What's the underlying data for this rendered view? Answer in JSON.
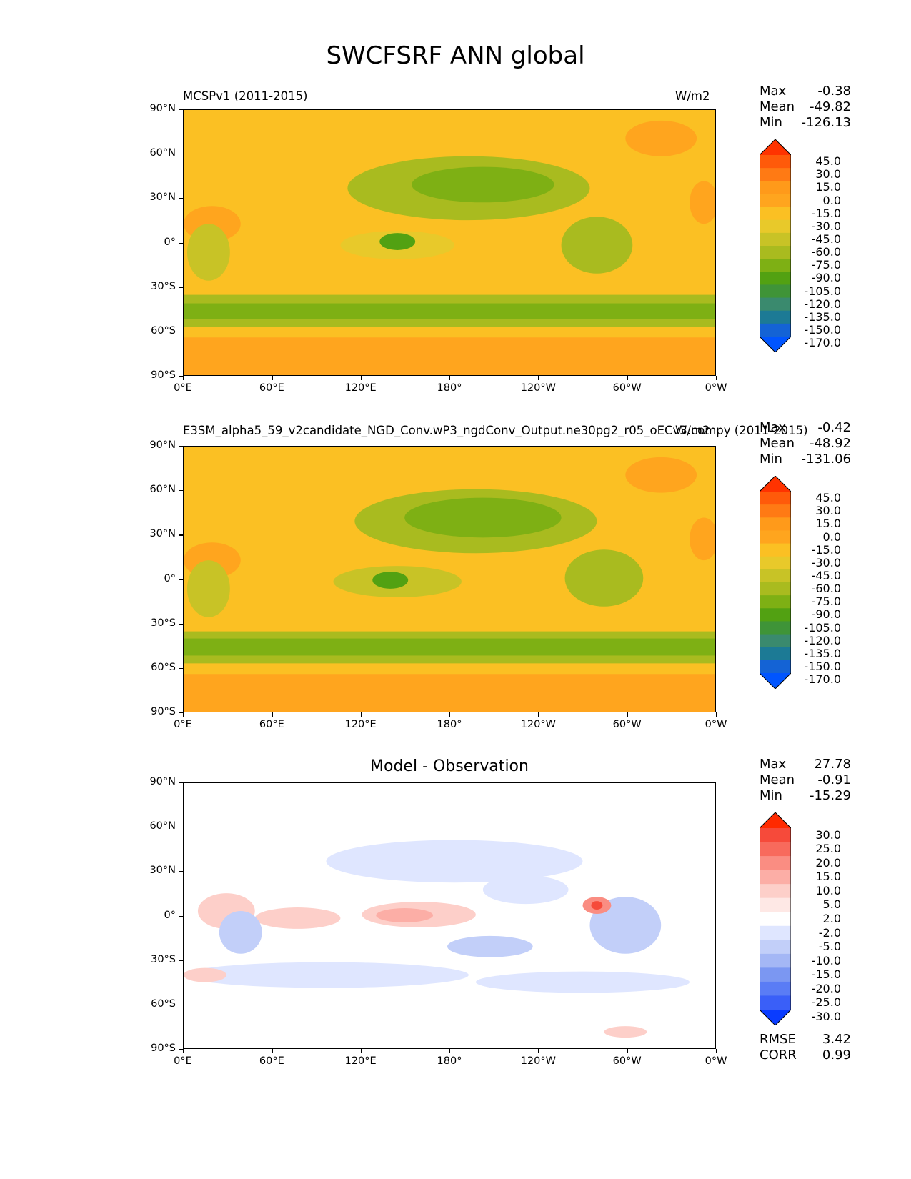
{
  "figure": {
    "title": "SWCFSRF ANN global"
  },
  "axes": {
    "lat_labels": [
      "90°N",
      "60°N",
      "30°N",
      "0°",
      "30°S",
      "60°S",
      "90°S"
    ],
    "lon_labels": [
      "0°E",
      "60°E",
      "120°E",
      "180°",
      "120°W",
      "60°W",
      "0°W"
    ]
  },
  "panels": [
    {
      "left_title": "MCSPv1 (2011-2015)",
      "right_title": "W/m2",
      "stats": {
        "max_label": "Max",
        "max": "-0.38",
        "mean_label": "Mean",
        "mean": "-49.82",
        "min_label": "Min",
        "min": "-126.13"
      },
      "colorbar": {
        "labels": [
          "45.0",
          "30.0",
          "15.0",
          "0.0",
          "-15.0",
          "-30.0",
          "-45.0",
          "-60.0",
          "-75.0",
          "-90.0",
          "-105.0",
          "-120.0",
          "-135.0",
          "-150.0",
          "-170.0"
        ],
        "colors": [
          "#ff3300",
          "#ff5a0a",
          "#ff7a14",
          "#ff9a1a",
          "#ffa51e",
          "#fbc023",
          "#e8c92a",
          "#c8c326",
          "#a9bb1f",
          "#7eb014",
          "#52a112",
          "#3f9438",
          "#3a8a6e",
          "#1c7a95",
          "#1463d5",
          "#0055ff"
        ]
      }
    },
    {
      "left_title": "E3SM_alpha5_59_v2candidate_NGD_Conv.wP3_ngdConv_Output.ne30pg2_r05_oECv3.compy (2011-2015)",
      "right_title": "W/m2",
      "stats": {
        "max_label": "Max",
        "max": "-0.42",
        "mean_label": "Mean",
        "mean": "-48.92",
        "min_label": "Min",
        "min": "-131.06"
      },
      "colorbar": {
        "labels": [
          "45.0",
          "30.0",
          "15.0",
          "0.0",
          "-15.0",
          "-30.0",
          "-45.0",
          "-60.0",
          "-75.0",
          "-90.0",
          "-105.0",
          "-120.0",
          "-135.0",
          "-150.0",
          "-170.0"
        ],
        "colors": [
          "#ff3300",
          "#ff5a0a",
          "#ff7a14",
          "#ff9a1a",
          "#ffa51e",
          "#fbc023",
          "#e8c92a",
          "#c8c326",
          "#a9bb1f",
          "#7eb014",
          "#52a112",
          "#3f9438",
          "#3a8a6e",
          "#1c7a95",
          "#1463d5",
          "#0055ff"
        ]
      }
    },
    {
      "center_title": "Model - Observation",
      "stats": {
        "max_label": "Max",
        "max": "27.78",
        "mean_label": "Mean",
        "mean": "-0.91",
        "min_label": "Min",
        "min": "-15.29"
      },
      "metrics": {
        "rmse_label": "RMSE",
        "rmse": "3.42",
        "corr_label": "CORR",
        "corr": "0.99"
      },
      "colorbar": {
        "labels": [
          "30.0",
          "25.0",
          "20.0",
          "15.0",
          "10.0",
          "5.0",
          "2.0",
          "-2.0",
          "-5.0",
          "-10.0",
          "-15.0",
          "-20.0",
          "-25.0",
          "-30.0"
        ],
        "colors": [
          "#ff2a00",
          "#f64a3a",
          "#f86a5c",
          "#fa8d82",
          "#fcaea6",
          "#fdcfc9",
          "#fee8e5",
          "#ffffff",
          "#dfe6ff",
          "#c2cff9",
          "#a4b7f5",
          "#7b97f2",
          "#5a7cf5",
          "#3a5ff8",
          "#0a3cff"
        ]
      }
    }
  ]
}
